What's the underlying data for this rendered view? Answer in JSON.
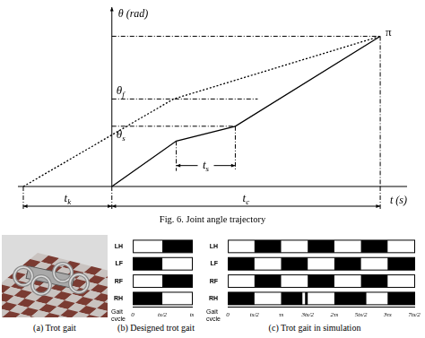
{
  "figure_caption": "Fig. 6.  Joint angle trajectory",
  "panel_a_caption": "(a) Trot gait",
  "chart_data": [
    {
      "type": "line",
      "y_label": "θ (rad)",
      "x_label": "t (s)",
      "xlim": [
        -0.35,
        1.1
      ],
      "xticks": [],
      "ylim": [
        0,
        3.75
      ],
      "yticks": [
        {
          "value": 3.1416,
          "label": "π"
        }
      ],
      "tick_labels": "y",
      "grid": false,
      "labels": {
        "theta_s": "θs",
        "theta_f": "θf",
        "t_s": "ts",
        "t_c": "tc",
        "t_k": "tk"
      },
      "series": [
        {
          "x": [
            0,
            0.24,
            0.46,
            1
          ],
          "values": [
            0,
            0.95,
            1.26,
            3.1416
          ],
          "color": "#000000",
          "line_style": "solid"
        },
        {
          "x": [
            -0.33,
            0.23,
            1
          ],
          "values": [
            0,
            1.83,
            3.1416
          ],
          "color": "#000000",
          "line_style": "dotted"
        }
      ]
    },
    {
      "type": "bar",
      "orientation": "horizontal",
      "caption": "(b) Designed trot gait",
      "x_label": "Gait cycle",
      "categories": [
        "LH",
        "LF",
        "RF",
        "RH"
      ],
      "xlim": [
        0,
        1
      ],
      "xticks": [
        0,
        {
          "value": 0.5,
          "label": "ts/2"
        },
        {
          "value": 1,
          "label": "ts"
        }
      ],
      "color": "#000000",
      "grid": false,
      "intervals": [
        [
          [
            0.5,
            1
          ]
        ],
        [
          [
            0,
            0.5
          ]
        ],
        [
          [
            0.5,
            1
          ]
        ],
        [
          [
            0,
            0.5
          ]
        ]
      ]
    },
    {
      "type": "bar",
      "orientation": "horizontal",
      "caption": "(c) Trot gait in simulation",
      "x_label": "Gait cycle",
      "categories": [
        "LH",
        "LF",
        "RF",
        "RH"
      ],
      "xlim": [
        0,
        3.5
      ],
      "xticks": [
        0,
        {
          "value": 0.5,
          "label": "ts/2"
        },
        {
          "value": 1,
          "label": "τs"
        },
        {
          "value": 1.5,
          "label": "3ts/2"
        },
        {
          "value": 2,
          "label": "2τs"
        },
        {
          "value": 2.5,
          "label": "5ts/2"
        },
        {
          "value": 3,
          "label": "3τs"
        },
        {
          "value": 3.5,
          "label": "7ts/2"
        }
      ],
      "color": "#000000",
      "grid": false,
      "intervals": [
        [
          [
            0.5,
            1
          ],
          [
            1.5,
            2
          ],
          [
            2.5,
            3
          ]
        ],
        [
          [
            0,
            0.5
          ],
          [
            1,
            1.5
          ],
          [
            2,
            2.5
          ],
          [
            3,
            3.5
          ]
        ],
        [
          [
            0.5,
            1
          ],
          [
            1.5,
            2
          ],
          [
            2.5,
            3
          ]
        ],
        [
          [
            0,
            0.5
          ],
          [
            1,
            1.4
          ],
          [
            1.45,
            1.5
          ],
          [
            2,
            2.55
          ],
          [
            2.6,
            2.5
          ],
          [
            3,
            3.5
          ]
        ]
      ]
    }
  ]
}
